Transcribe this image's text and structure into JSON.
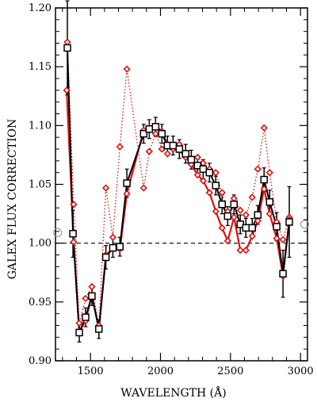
{
  "chart_data": {
    "type": "line",
    "xlabel": "WAVELENGTH (Å)",
    "ylabel": "GALEX FLUX CORRECTION",
    "xlim": [
      1250,
      3050
    ],
    "ylim": [
      0.9,
      1.2
    ],
    "x_ticks": [
      1500,
      2000,
      2500,
      3000
    ],
    "x_tick_labels": [
      "1500",
      "2000",
      "2500",
      "3000"
    ],
    "y_ticks": [
      0.9,
      0.95,
      1.0,
      1.05,
      1.1,
      1.15,
      1.2
    ],
    "y_tick_labels": [
      "0.90",
      "0.95",
      "1.00",
      "1.05",
      "1.10",
      "1.15",
      "1.20"
    ],
    "reference_line": {
      "y": 1.0,
      "style": "dashed",
      "color": "#000000"
    },
    "side_markers": [
      {
        "x": 1265,
        "y": 1.009
      },
      {
        "x": 3030,
        "y": 1.016
      }
    ],
    "colors": {
      "black_series": "#000000",
      "red_series": "#e01010",
      "red_dotted": "#e01010",
      "side_marker": "#909090"
    },
    "series": [
      {
        "style": "solid-black-squares-errorbars",
        "points": [
          {
            "x": 1335,
            "y": 1.166,
            "err": 0.04
          },
          {
            "x": 1375,
            "y": 1.008,
            "err": 0.02
          },
          {
            "x": 1420,
            "y": 0.924,
            "err": 0.008
          },
          {
            "x": 1465,
            "y": 0.937,
            "err": 0.008
          },
          {
            "x": 1510,
            "y": 0.955,
            "err": 0.008
          },
          {
            "x": 1560,
            "y": 0.927,
            "err": 0.008
          },
          {
            "x": 1610,
            "y": 0.988,
            "err": 0.01
          },
          {
            "x": 1660,
            "y": 0.996,
            "err": 0.008
          },
          {
            "x": 1710,
            "y": 0.997,
            "err": 0.008
          },
          {
            "x": 1760,
            "y": 1.051,
            "err": 0.012
          },
          {
            "x": 1880,
            "y": 1.093,
            "err": 0.008
          },
          {
            "x": 1920,
            "y": 1.097,
            "err": 0.008
          },
          {
            "x": 1965,
            "y": 1.099,
            "err": 0.008
          },
          {
            "x": 2010,
            "y": 1.093,
            "err": 0.008
          },
          {
            "x": 2050,
            "y": 1.083,
            "err": 0.008
          },
          {
            "x": 2090,
            "y": 1.083,
            "err": 0.008
          },
          {
            "x": 2135,
            "y": 1.08,
            "err": 0.008
          },
          {
            "x": 2180,
            "y": 1.076,
            "err": 0.008
          },
          {
            "x": 2220,
            "y": 1.071,
            "err": 0.008
          },
          {
            "x": 2265,
            "y": 1.066,
            "err": 0.008
          },
          {
            "x": 2305,
            "y": 1.063,
            "err": 0.008
          },
          {
            "x": 2350,
            "y": 1.06,
            "err": 0.008
          },
          {
            "x": 2395,
            "y": 1.049,
            "err": 0.008
          },
          {
            "x": 2440,
            "y": 1.033,
            "err": 0.008
          },
          {
            "x": 2480,
            "y": 1.023,
            "err": 0.008
          },
          {
            "x": 2525,
            "y": 1.033,
            "err": 0.008
          },
          {
            "x": 2570,
            "y": 1.016,
            "err": 0.008
          },
          {
            "x": 2610,
            "y": 1.013,
            "err": 0.008
          },
          {
            "x": 2655,
            "y": 1.013,
            "err": 0.008
          },
          {
            "x": 2695,
            "y": 1.024,
            "err": 0.008
          },
          {
            "x": 2740,
            "y": 1.054,
            "err": 0.01
          },
          {
            "x": 2780,
            "y": 1.035,
            "err": 0.01
          },
          {
            "x": 2830,
            "y": 1.014,
            "err": 0.012
          },
          {
            "x": 2875,
            "y": 0.974,
            "err": 0.02
          },
          {
            "x": 2920,
            "y": 1.018,
            "err": 0.03
          }
        ]
      },
      {
        "style": "solid-red-diamonds",
        "points": [
          {
            "x": 1330,
            "y": 1.13
          },
          {
            "x": 1380,
            "y": 1.001
          },
          {
            "x": 1420,
            "y": 0.925
          },
          {
            "x": 1465,
            "y": 0.934
          },
          {
            "x": 1510,
            "y": 0.956
          },
          {
            "x": 1560,
            "y": 0.927
          },
          {
            "x": 1610,
            "y": 0.99
          },
          {
            "x": 1660,
            "y": 0.995
          },
          {
            "x": 1710,
            "y": 0.995
          },
          {
            "x": 1760,
            "y": 1.042
          },
          {
            "x": 1880,
            "y": 1.096
          },
          {
            "x": 1920,
            "y": 1.098
          },
          {
            "x": 1965,
            "y": 1.1
          },
          {
            "x": 2010,
            "y": 1.095
          },
          {
            "x": 2050,
            "y": 1.084
          },
          {
            "x": 2090,
            "y": 1.08
          },
          {
            "x": 2135,
            "y": 1.079
          },
          {
            "x": 2180,
            "y": 1.073
          },
          {
            "x": 2220,
            "y": 1.067
          },
          {
            "x": 2265,
            "y": 1.058
          },
          {
            "x": 2305,
            "y": 1.053
          },
          {
            "x": 2350,
            "y": 1.043
          },
          {
            "x": 2395,
            "y": 1.027
          },
          {
            "x": 2440,
            "y": 1.013
          },
          {
            "x": 2480,
            "y": 1.002
          },
          {
            "x": 2525,
            "y": 1.022
          },
          {
            "x": 2570,
            "y": 0.994
          },
          {
            "x": 2610,
            "y": 0.994
          },
          {
            "x": 2655,
            "y": 1.006
          },
          {
            "x": 2695,
            "y": 1.019
          },
          {
            "x": 2740,
            "y": 1.046
          },
          {
            "x": 2780,
            "y": 1.025
          },
          {
            "x": 2830,
            "y": 1.004
          },
          {
            "x": 2875,
            "y": 0.972
          },
          {
            "x": 2920,
            "y": 1.02
          }
        ]
      },
      {
        "style": "dotted-red-diamonds",
        "points": [
          {
            "x": 1335,
            "y": 1.171
          },
          {
            "x": 1380,
            "y": 1.033
          },
          {
            "x": 1420,
            "y": 0.932
          },
          {
            "x": 1465,
            "y": 0.953
          },
          {
            "x": 1510,
            "y": 0.963
          },
          {
            "x": 1560,
            "y": 0.93
          },
          {
            "x": 1610,
            "y": 1.047
          },
          {
            "x": 1660,
            "y": 1.005
          },
          {
            "x": 1710,
            "y": 1.082
          },
          {
            "x": 1760,
            "y": 1.148
          },
          {
            "x": 1880,
            "y": 1.047
          },
          {
            "x": 1920,
            "y": 1.078
          },
          {
            "x": 1965,
            "y": 1.093
          },
          {
            "x": 2010,
            "y": 1.08
          },
          {
            "x": 2050,
            "y": 1.076
          },
          {
            "x": 2090,
            "y": 1.084
          },
          {
            "x": 2135,
            "y": 1.084
          },
          {
            "x": 2180,
            "y": 1.075
          },
          {
            "x": 2220,
            "y": 1.071
          },
          {
            "x": 2265,
            "y": 1.073
          },
          {
            "x": 2305,
            "y": 1.068
          },
          {
            "x": 2350,
            "y": 1.063
          },
          {
            "x": 2395,
            "y": 1.06
          },
          {
            "x": 2440,
            "y": 1.043
          },
          {
            "x": 2480,
            "y": 1.027
          },
          {
            "x": 2525,
            "y": 1.038
          },
          {
            "x": 2570,
            "y": 1.028
          },
          {
            "x": 2610,
            "y": 1.024
          },
          {
            "x": 2655,
            "y": 1.039
          },
          {
            "x": 2695,
            "y": 1.063
          },
          {
            "x": 2740,
            "y": 1.098
          },
          {
            "x": 2780,
            "y": 1.06
          },
          {
            "x": 2830,
            "y": 1.018
          },
          {
            "x": 2875,
            "y": 1.003
          },
          {
            "x": 2920,
            "y": 1.022
          }
        ]
      }
    ]
  }
}
